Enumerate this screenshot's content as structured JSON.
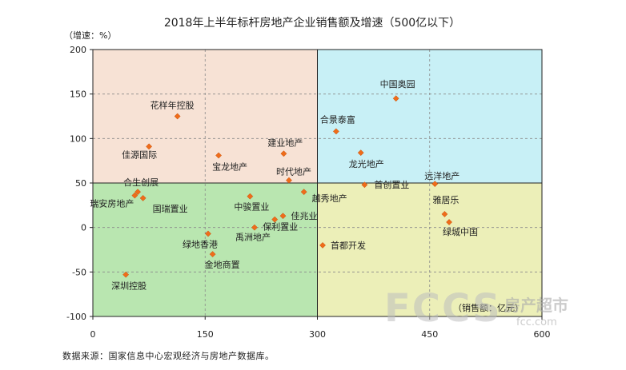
{
  "title": "2018年上半年标杆房地产企业销售额及增速（500亿以下）",
  "y_unit": "（增速：%）",
  "x_unit": "（销售额：亿元）",
  "source": "数据来源：国家信息中心宏观经济与房地产数据库。",
  "watermark": {
    "logo": "FCCS",
    "cn": "房产超市",
    "url": "fcc.com"
  },
  "colors": {
    "quadrant_top_left": "#f7e2d5",
    "quadrant_top_right": "#c8f0f6",
    "quadrant_bottom_left": "#b9e6b0",
    "quadrant_bottom_right": "#ecefb8",
    "marker": "#ef6c1a"
  },
  "chart_data": {
    "type": "scatter",
    "xlim": [
      0,
      600
    ],
    "ylim": [
      -100,
      200
    ],
    "x_ticks": [
      0,
      150,
      300,
      450,
      600
    ],
    "y_ticks": [
      -100,
      -50,
      0,
      50,
      100,
      150,
      200
    ],
    "quadrant_split": {
      "x": 300,
      "y": 50
    },
    "grid": true,
    "points": [
      {
        "name": "中国奥园",
        "x": 405,
        "y": 145
      },
      {
        "name": "合景泰富",
        "x": 325,
        "y": 108
      },
      {
        "name": "龙光地产",
        "x": 358,
        "y": 84
      },
      {
        "name": "远洋地产",
        "x": 457,
        "y": 49
      },
      {
        "name": "首创置业",
        "x": 363,
        "y": 48
      },
      {
        "name": "雅居乐",
        "x": 470,
        "y": 15
      },
      {
        "name": "绿城中国",
        "x": 476,
        "y": 6
      },
      {
        "name": "首都开发",
        "x": 307,
        "y": -20
      },
      {
        "name": "花样年控股",
        "x": 113,
        "y": 125
      },
      {
        "name": "佳源国际",
        "x": 75,
        "y": 91
      },
      {
        "name": "宝龙地产",
        "x": 168,
        "y": 81
      },
      {
        "name": "建业地产",
        "x": 255,
        "y": 83
      },
      {
        "name": "时代地产",
        "x": 262,
        "y": 53
      },
      {
        "name": "越秀地产",
        "x": 282,
        "y": 40
      },
      {
        "name": "合生创展",
        "x": 60,
        "y": 40
      },
      {
        "name": "瑞安房地产",
        "x": 56,
        "y": 36
      },
      {
        "name": "国瑞置业",
        "x": 67,
        "y": 33
      },
      {
        "name": "中骏置业",
        "x": 210,
        "y": 35
      },
      {
        "name": "佳兆业",
        "x": 254,
        "y": 13
      },
      {
        "name": "保利置业",
        "x": 243,
        "y": 9
      },
      {
        "name": "禹洲地产",
        "x": 216,
        "y": 0
      },
      {
        "name": "绿地香港",
        "x": 154,
        "y": -7
      },
      {
        "name": "金地商置",
        "x": 160,
        "y": -30
      },
      {
        "name": "深圳控股",
        "x": 44,
        "y": -53
      }
    ]
  }
}
